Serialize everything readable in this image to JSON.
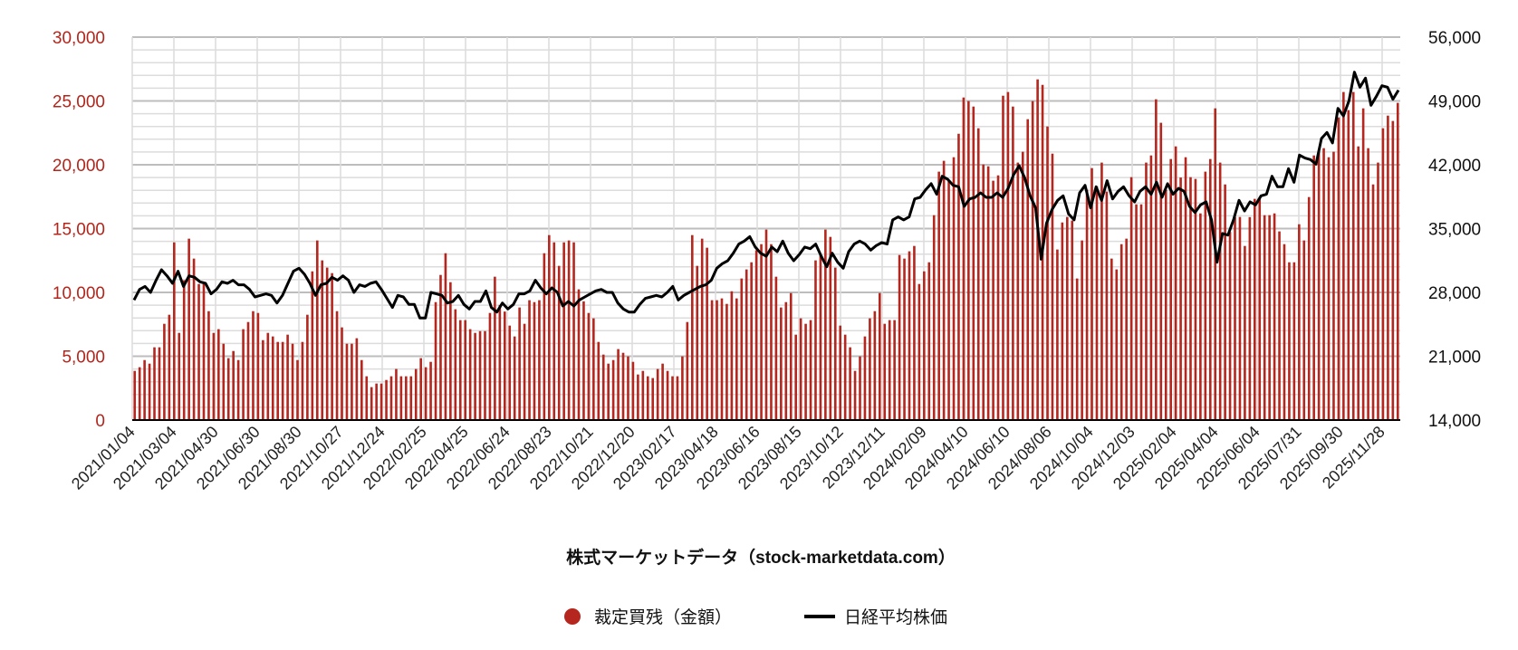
{
  "chart_data": {
    "type": "bar+line",
    "title": "株式マーケットデータ（stock-marketdata.com）",
    "legend_position": "bottom",
    "grid": true,
    "colors": {
      "bars": "#b5261e",
      "line": "#000000",
      "left_axis_text": "#b3251b"
    },
    "x_tick_labels": [
      "2021/01/04",
      "2021/03/04",
      "2021/04/30",
      "2021/06/30",
      "2021/08/30",
      "2021/10/27",
      "2021/12/24",
      "2022/02/25",
      "2022/04/25",
      "2022/06/24",
      "2022/08/23",
      "2022/10/21",
      "2022/12/20",
      "2023/02/17",
      "2023/04/18",
      "2023/06/16",
      "2023/08/15",
      "2023/10/12",
      "2023/12/11",
      "2024/02/09",
      "2024/04/10",
      "2024/06/10",
      "2024/08/06",
      "2024/10/04",
      "2024/12/03",
      "2025/02/04",
      "2025/04/04",
      "2025/06/04",
      "2025/07/31",
      "2025/09/30",
      "2025/11/28"
    ],
    "y_left": {
      "min": 0,
      "max": 30000,
      "ticks": [
        "0",
        "5,000",
        "10,000",
        "15,000",
        "20,000",
        "25,000",
        "30,000"
      ]
    },
    "y_right": {
      "min": 14000,
      "max": 56000,
      "ticks": [
        "14,000",
        "21,000",
        "28,000",
        "35,000",
        "42,000",
        "49,000",
        "56,000"
      ]
    },
    "series": [
      {
        "name": "裁定買残（金額）",
        "type": "bar",
        "axis": "left",
        "values": [
          3850,
          4140,
          4700,
          4420,
          5700,
          5700,
          7540,
          8250,
          13920,
          6830,
          10950,
          14210,
          12650,
          10660,
          10660,
          8530,
          6830,
          7120,
          5980,
          4850,
          5410,
          4700,
          7120,
          7680,
          8530,
          8390,
          6260,
          6830,
          6550,
          6120,
          6120,
          6690,
          5980,
          4700,
          6120,
          8250,
          11650,
          14070,
          12510,
          11940,
          11510,
          8530,
          7260,
          5980,
          5980,
          6410,
          4700,
          3430,
          2580,
          2860,
          2860,
          3140,
          3430,
          4000,
          3430,
          3430,
          3430,
          4000,
          4850,
          4140,
          4560,
          9240,
          11370,
          13070,
          10800,
          8680,
          7830,
          7830,
          7120,
          6830,
          6970,
          6970,
          8390,
          11230,
          9000,
          8500,
          7400,
          6550,
          8820,
          7540,
          9390,
          9240,
          9390,
          13070,
          14490,
          13920,
          12080,
          13920,
          14070,
          13920,
          10240,
          9300,
          8390,
          7970,
          6120,
          5130,
          4420,
          4700,
          5560,
          5270,
          4990,
          4560,
          3570,
          3850,
          3430,
          3290,
          4000,
          4420,
          3850,
          3430,
          3430,
          4990,
          7680,
          14490,
          12080,
          14210,
          13500,
          9390,
          9390,
          9530,
          9100,
          10090,
          9530,
          11090,
          11800,
          12360,
          13300,
          13780,
          14920,
          13780,
          11230,
          8820,
          9240,
          9950,
          6690,
          7970,
          7540,
          7830,
          12510,
          12930,
          14920,
          14350,
          11940,
          7400,
          6690,
          5700,
          3850,
          4990,
          6550,
          7970,
          8530,
          9950,
          7540,
          7830,
          7830,
          12930,
          12650,
          13220,
          13640,
          10660,
          11650,
          12360,
          16050,
          19460,
          20310,
          18750,
          20590,
          22430,
          25270,
          24990,
          24560,
          22860,
          20020,
          19880,
          18750,
          19170,
          25410,
          25700,
          24560,
          20170,
          21020,
          23570,
          24990,
          26690,
          26260,
          23000,
          20870,
          13360,
          15480,
          15910,
          15630,
          11090,
          14070,
          18040,
          19740,
          18320,
          20170,
          17900,
          12650,
          11800,
          13780,
          14210,
          19030,
          16900,
          16900,
          20170,
          20730,
          25130,
          23290,
          18040,
          20450,
          21440,
          19000,
          20590,
          19030,
          18890,
          16190,
          19460,
          20450,
          24420,
          20170,
          18460,
          14730,
          15910,
          15910,
          13640,
          15900,
          17330,
          17330,
          16050,
          16050,
          16190,
          14780,
          13780,
          12360,
          12360,
          15340,
          14070,
          17470,
          20730,
          21160,
          21300,
          20590,
          21020,
          23710,
          25700,
          24280,
          25700,
          21440,
          24420,
          21300,
          18460,
          20170,
          22860,
          23850,
          23430,
          24850
        ]
      },
      {
        "name": "日経平均株価",
        "type": "line",
        "axis": "right",
        "values": [
          27170,
          28330,
          28660,
          28000,
          29330,
          30480,
          29820,
          28990,
          30320,
          28660,
          29820,
          29660,
          29160,
          28990,
          27840,
          28330,
          29160,
          28990,
          29330,
          28830,
          28830,
          28330,
          27500,
          27670,
          27840,
          27670,
          26840,
          27670,
          28990,
          30320,
          30650,
          29990,
          28990,
          27670,
          28830,
          28990,
          29660,
          29330,
          29820,
          29330,
          28000,
          28830,
          28660,
          28990,
          29160,
          28330,
          27340,
          26350,
          27670,
          27500,
          26680,
          26680,
          25190,
          25190,
          28000,
          27840,
          27670,
          26840,
          27010,
          27670,
          26680,
          26180,
          27010,
          27010,
          28170,
          26350,
          25850,
          26840,
          26180,
          26680,
          27840,
          27840,
          28170,
          29330,
          28500,
          27840,
          28500,
          28000,
          26510,
          27010,
          26510,
          27170,
          27500,
          27840,
          28170,
          28330,
          28000,
          28000,
          26840,
          26180,
          25850,
          25850,
          26680,
          27340,
          27500,
          27670,
          27500,
          28000,
          28660,
          27170,
          27670,
          28000,
          28330,
          28660,
          28830,
          29330,
          30650,
          31150,
          31480,
          32300,
          33300,
          33630,
          34120,
          32970,
          32300,
          31970,
          32970,
          32470,
          33630,
          32300,
          31480,
          32140,
          32970,
          32800,
          33300,
          31970,
          30810,
          32300,
          31310,
          30650,
          32470,
          33300,
          33630,
          33300,
          32640,
          33130,
          33460,
          33300,
          35950,
          36280,
          35950,
          36280,
          38260,
          38430,
          39260,
          39920,
          38760,
          40740,
          40410,
          39750,
          39590,
          37430,
          38260,
          38430,
          38920,
          38430,
          38430,
          38920,
          38430,
          39420,
          40910,
          41900,
          40580,
          38590,
          37270,
          31640,
          35610,
          37100,
          38100,
          38590,
          36610,
          35950,
          38920,
          39750,
          37270,
          39590,
          38100,
          40250,
          38260,
          39090,
          39590,
          38590,
          37930,
          39090,
          39590,
          38760,
          40080,
          38430,
          39920,
          38760,
          39420,
          39090,
          37430,
          36770,
          37600,
          37930,
          35950,
          31310,
          34460,
          34290,
          35950,
          38100,
          36940,
          37930,
          37600,
          38590,
          38760,
          40740,
          39590,
          39590,
          41570,
          40080,
          43060,
          42730,
          42570,
          42070,
          44880,
          45540,
          44390,
          48190,
          47360,
          49020,
          52160,
          50510,
          51500,
          48520,
          49520,
          50670,
          50510,
          49190,
          50180
        ]
      }
    ]
  },
  "legend": {
    "bars_label": "裁定買残（金額）",
    "line_label": "日経平均株価"
  },
  "footer": {
    "title": "株式マーケットデータ（stock-marketdata.com）"
  }
}
